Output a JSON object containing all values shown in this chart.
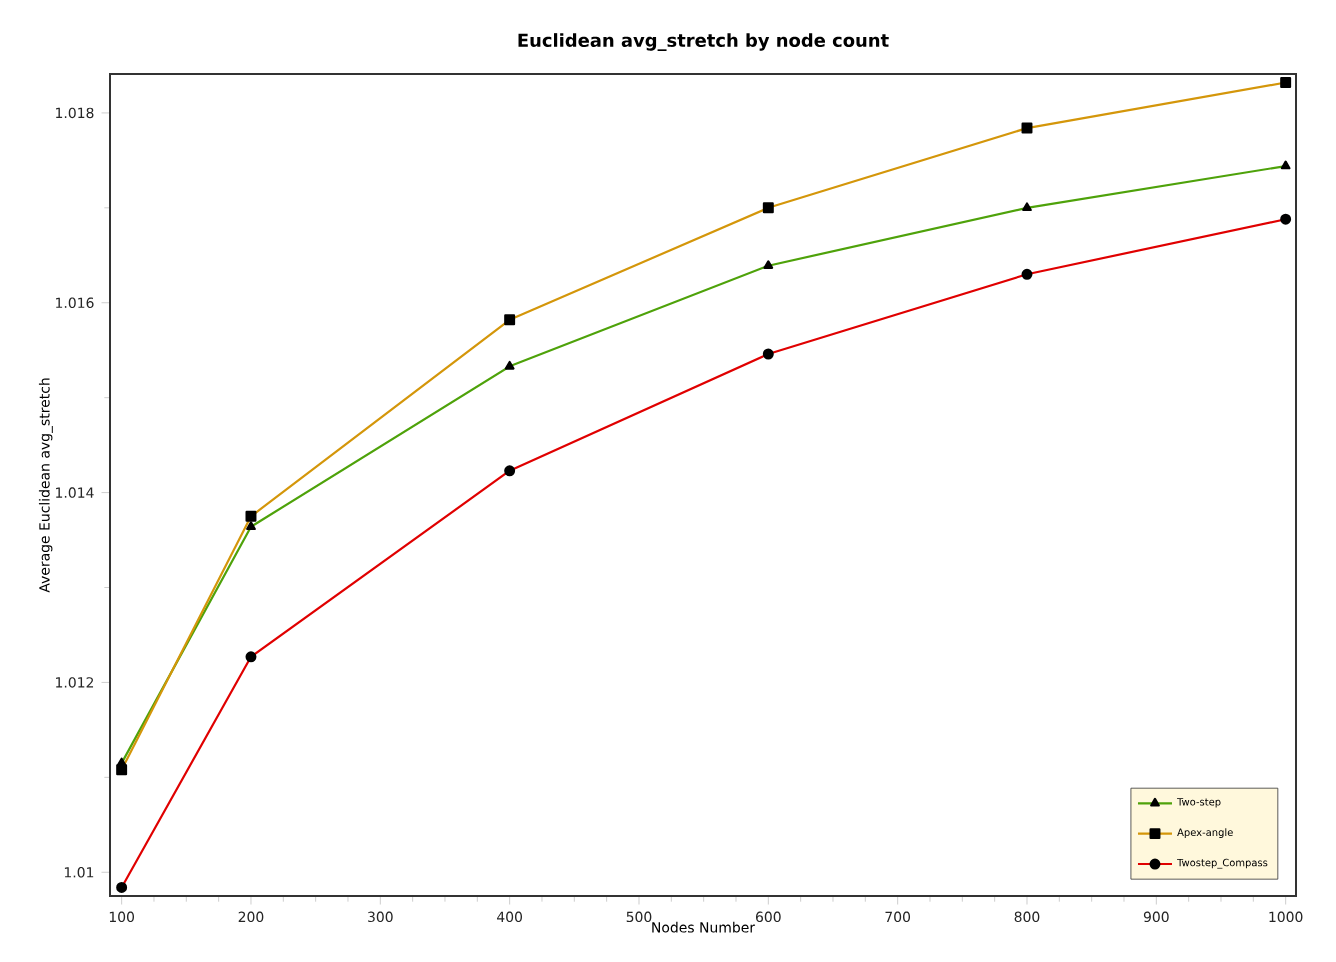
{
  "chart_data": {
    "type": "line",
    "title": "Euclidean avg_stretch by node count",
    "xlabel": "Nodes Number",
    "ylabel": "Average Euclidean avg_stretch",
    "x": [
      100,
      200,
      400,
      600,
      800,
      1000
    ],
    "series": [
      {
        "name": "Two-step",
        "color": "#4ea20a",
        "marker": "triangle",
        "values": [
          1.01115,
          1.01364,
          1.01533,
          1.01639,
          1.017,
          1.01744
        ]
      },
      {
        "name": "Apex-angle",
        "color": "#d4960a",
        "marker": "square",
        "values": [
          1.01108,
          1.01375,
          1.01582,
          1.017,
          1.01784,
          1.01832
        ]
      },
      {
        "name": "Twostep_Compass",
        "color": "#e00000",
        "marker": "circle",
        "values": [
          1.00984,
          1.01227,
          1.01423,
          1.01546,
          1.0163,
          1.01688
        ]
      }
    ],
    "xlim": [
      91,
      1008
    ],
    "xticks": [
      100,
      200,
      300,
      400,
      500,
      600,
      700,
      800,
      900,
      1000
    ],
    "ylim": [
      1.00975,
      1.01841
    ],
    "yticks": [
      1.01,
      1.012,
      1.014,
      1.016,
      1.018
    ],
    "grid": false,
    "legend": "bottom right",
    "line_style": "solid"
  }
}
